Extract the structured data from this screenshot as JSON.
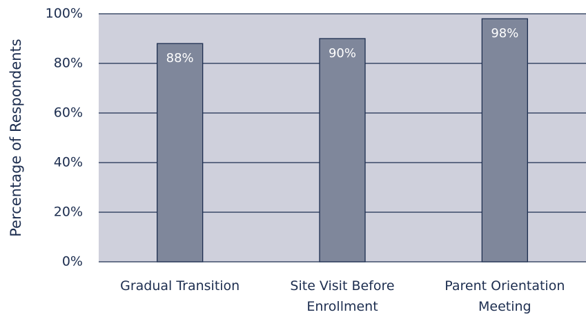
{
  "chart_data": {
    "type": "bar",
    "y_axis_label": "Percentage of Respondents",
    "categories": [
      "Gradual Transition",
      "Site Visit Before Enrollment",
      "Parent Orientation Meeting"
    ],
    "values": [
      88,
      90,
      98
    ],
    "value_labels": [
      "88%",
      "90%",
      "98%"
    ],
    "color": "#7f879b",
    "ylim": [
      0,
      100
    ],
    "yticks": [
      {
        "value": 0,
        "label": "0%"
      },
      {
        "value": 20,
        "label": "20%"
      },
      {
        "value": 40,
        "label": "40%"
      },
      {
        "value": 60,
        "label": "60%"
      },
      {
        "value": 80,
        "label": "80%"
      },
      {
        "value": 100,
        "label": "100%"
      }
    ],
    "grid": true
  }
}
